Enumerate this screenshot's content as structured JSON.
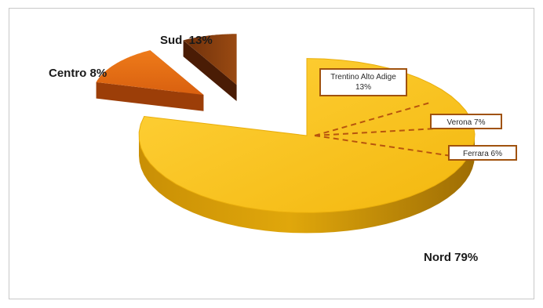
{
  "chart_data": {
    "type": "pie",
    "title": "",
    "slices": [
      {
        "label": "Nord 79%",
        "value": 79,
        "color": "#F7C21A",
        "exploded": false
      },
      {
        "label": "Sud  13%",
        "value": 13,
        "color": "#E46D12",
        "exploded": true
      },
      {
        "label": "Centro 8%",
        "value": 8,
        "color": "#8A3E0E",
        "exploded": true
      }
    ],
    "sub_breakdown": [
      {
        "label_lines": [
          "Trentino Alto Adige",
          "13%"
        ],
        "value": 13
      },
      {
        "label_lines": [
          "Verona 7%"
        ],
        "value": 7
      },
      {
        "label_lines": [
          "Ferrara 6%"
        ],
        "value": 6
      }
    ],
    "style": "3d-exploded-pie",
    "legend": "none"
  }
}
